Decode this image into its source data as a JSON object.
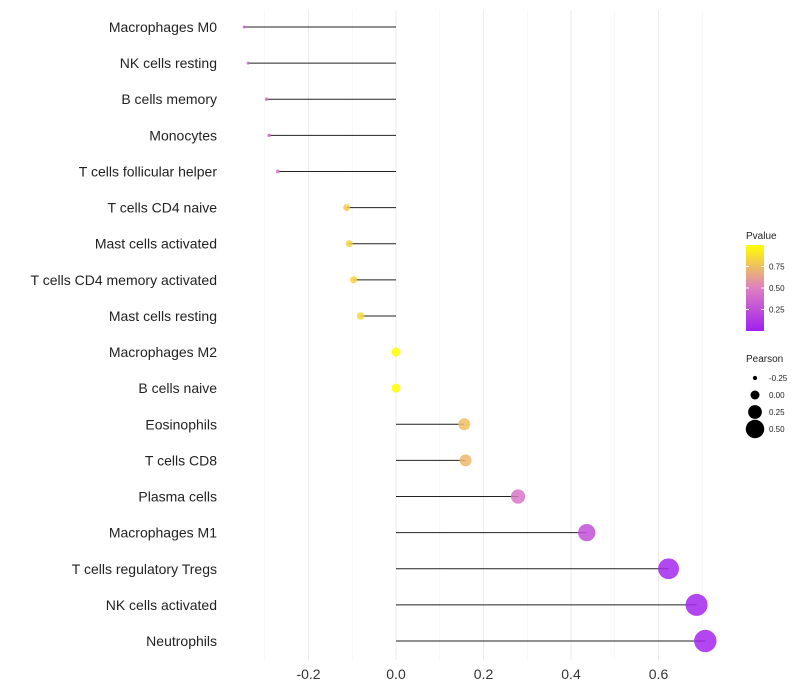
{
  "chart_data": {
    "type": "lollipop",
    "title": "",
    "xlabel": "",
    "ylabel": "",
    "xlim": [
      -0.35,
      0.72
    ],
    "x_ticks": [
      -0.2,
      0.0,
      0.2,
      0.4,
      0.6
    ],
    "x_tick_labels": [
      "-0.2",
      "0.0",
      "0.2",
      "0.4",
      "0.6"
    ],
    "grid": true,
    "categories": [
      "Macrophages M0",
      "NK cells resting",
      "B cells memory",
      "Monocytes",
      "T cells follicular helper",
      "T cells CD4 naive",
      "Mast cells activated",
      "T cells CD4 memory activated",
      "Mast cells resting",
      "Macrophages M2",
      "B cells naive",
      "Eosinophils",
      "T cells CD8",
      "Plasma cells",
      "Macrophages M1",
      "T cells regulatory  Tregs ",
      "NK cells activated",
      "Neutrophils"
    ],
    "pearson": [
      -0.347,
      -0.338,
      -0.296,
      -0.29,
      -0.27,
      -0.113,
      -0.107,
      -0.097,
      -0.081,
      0.0,
      0.0,
      0.156,
      0.159,
      0.279,
      0.436,
      0.623,
      0.687,
      0.707
    ],
    "pvalue": [
      0.35,
      0.35,
      0.4,
      0.4,
      0.45,
      0.8,
      0.82,
      0.83,
      0.85,
      1.0,
      1.0,
      0.75,
      0.72,
      0.45,
      0.25,
      0.04,
      0.03,
      0.03
    ],
    "legend_color": {
      "title": "Pvalue",
      "ticks": [
        0.25,
        0.5,
        0.75
      ],
      "tick_labels": [
        "0.25",
        "0.50",
        "0.75"
      ],
      "range": [
        0.0,
        1.0
      ],
      "low_color": "#A020F0",
      "mid_color": "#DE7FC0",
      "high_color": "#FFFF00",
      "position": "right"
    },
    "legend_size": {
      "title": "Pearson",
      "values": [
        -0.25,
        0.0,
        0.25,
        0.5
      ],
      "labels": [
        "-0.25",
        "0.00",
        "0.25",
        "0.50"
      ],
      "position": "right"
    }
  }
}
